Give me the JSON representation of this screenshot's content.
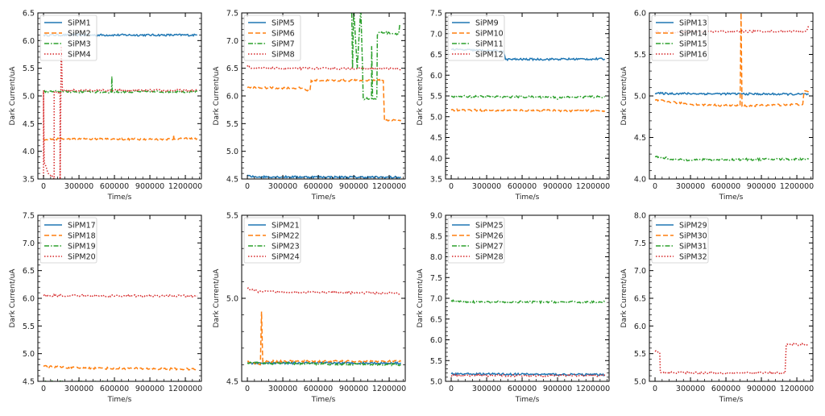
{
  "chart_data": [
    {
      "type": "line",
      "xlabel": "Time/s",
      "ylabel": "Dark Current/uA",
      "xlim": [
        -48000,
        1336000
      ],
      "ylim": [
        3.5,
        6.5
      ],
      "xticks": [
        "0",
        "300000",
        "600000",
        "900000",
        "1200000"
      ],
      "yticks": [
        "3.5",
        "4.0",
        "4.5",
        "5.0",
        "5.5",
        "6.0",
        "6.5"
      ],
      "legend": "top-left",
      "series": [
        {
          "name": "SiPM1",
          "points": [
            [
              0,
              6.1
            ],
            [
              1300000,
              6.1
            ]
          ]
        },
        {
          "name": "SiPM2",
          "points": [
            [
              0,
              4.22
            ],
            [
              1100000,
              4.22
            ],
            [
              1100000,
              4.3
            ],
            [
              1105000,
              4.22
            ],
            [
              1300000,
              4.23
            ]
          ]
        },
        {
          "name": "SiPM3",
          "points": [
            [
              0,
              5.08
            ],
            [
              575000,
              5.07
            ],
            [
              578000,
              5.35
            ],
            [
              582000,
              5.07
            ],
            [
              1300000,
              5.08
            ]
          ]
        },
        {
          "name": "SiPM4",
          "points": [
            [
              0,
              3.55
            ],
            [
              0,
              5.1
            ],
            [
              5000,
              3.8
            ],
            [
              40000,
              3.6
            ],
            [
              90000,
              3.5
            ],
            [
              90000,
              5.07
            ],
            [
              140000,
              5.07
            ],
            [
              140000,
              3.5
            ],
            [
              150000,
              5.9
            ],
            [
              160000,
              5.1
            ],
            [
              1300000,
              5.1
            ]
          ]
        }
      ]
    },
    {
      "type": "line",
      "xlabel": "Time/s",
      "ylabel": "Dark Current/uA",
      "xlim": [
        -48000,
        1336000
      ],
      "ylim": [
        4.5,
        7.5
      ],
      "xticks": [
        "0",
        "300000",
        "600000",
        "900000",
        "1200000"
      ],
      "yticks": [
        "4.5",
        "5.0",
        "5.5",
        "6.0",
        "6.5",
        "7.0",
        "7.5"
      ],
      "legend": "top-left",
      "series": [
        {
          "name": "SiPM5",
          "points": [
            [
              0,
              4.57
            ],
            [
              30000,
              4.54
            ],
            [
              1300000,
              4.53
            ]
          ]
        },
        {
          "name": "SiPM6",
          "points": [
            [
              0,
              6.15
            ],
            [
              480000,
              6.14
            ],
            [
              500000,
              6.1
            ],
            [
              530000,
              6.1
            ],
            [
              540000,
              6.28
            ],
            [
              1150000,
              6.28
            ],
            [
              1160000,
              5.56
            ],
            [
              1300000,
              5.56
            ]
          ]
        },
        {
          "name": "SiPM7",
          "points": [
            [
              880000,
              8.0
            ],
            [
              890000,
              6.5
            ],
            [
              900000,
              7.6
            ],
            [
              930000,
              6.5
            ],
            [
              960000,
              7.6
            ],
            [
              975000,
              6.5
            ],
            [
              980000,
              5.95
            ],
            [
              1050000,
              5.95
            ],
            [
              1052000,
              6.9
            ],
            [
              1060000,
              5.95
            ],
            [
              1095000,
              5.95
            ],
            [
              1100000,
              7.1
            ],
            [
              1120000,
              7.15
            ],
            [
              1280000,
              7.12
            ],
            [
              1290000,
              7.3
            ]
          ]
        },
        {
          "name": "SiPM8",
          "points": [
            [
              0,
              6.55
            ],
            [
              30000,
              6.5
            ],
            [
              1300000,
              6.49
            ]
          ]
        }
      ]
    },
    {
      "type": "line",
      "xlabel": "Time/s",
      "ylabel": "Dark Current/uA",
      "xlim": [
        -48000,
        1336000
      ],
      "ylim": [
        3.5,
        7.5
      ],
      "xticks": [
        "0",
        "300000",
        "600000",
        "900000",
        "1200000"
      ],
      "yticks": [
        "3.5",
        "4.0",
        "4.5",
        "5.0",
        "5.5",
        "6.0",
        "6.5",
        "7.0",
        "7.5"
      ],
      "legend": "top-left",
      "series": [
        {
          "name": "SiPM9",
          "points": [
            [
              0,
              6.62
            ],
            [
              440000,
              6.58
            ],
            [
              460000,
              6.38
            ],
            [
              1300000,
              6.39
            ]
          ]
        },
        {
          "name": "SiPM10",
          "points": [
            [
              0,
              5.16
            ],
            [
              1300000,
              5.14
            ]
          ]
        },
        {
          "name": "SiPM11",
          "points": [
            [
              0,
              5.49
            ],
            [
              880000,
              5.47
            ],
            [
              900000,
              5.42
            ],
            [
              920000,
              5.47
            ],
            [
              1300000,
              5.48
            ]
          ]
        },
        {
          "name": "SiPM12",
          "points": []
        }
      ]
    },
    {
      "type": "line",
      "xlabel": "Time/s",
      "ylabel": "Dark Current/uA",
      "xlim": [
        -48000,
        1336000
      ],
      "ylim": [
        4.0,
        6.0
      ],
      "xticks": [
        "0",
        "300000",
        "600000",
        "900000",
        "1200000"
      ],
      "yticks": [
        "4.0",
        "4.5",
        "5.0",
        "5.5",
        "6.0"
      ],
      "legend": "top-left",
      "series": [
        {
          "name": "SiPM13",
          "points": [
            [
              0,
              5.03
            ],
            [
              1300000,
              5.02
            ]
          ]
        },
        {
          "name": "SiPM14",
          "points": [
            [
              0,
              4.95
            ],
            [
              300000,
              4.9
            ],
            [
              720000,
              4.88
            ],
            [
              728000,
              6.0
            ],
            [
              736000,
              4.88
            ],
            [
              1250000,
              4.9
            ],
            [
              1260000,
              5.05
            ],
            [
              1300000,
              5.05
            ]
          ]
        },
        {
          "name": "SiPM15",
          "points": [
            [
              0,
              4.27
            ],
            [
              200000,
              4.23
            ],
            [
              1300000,
              4.24
            ]
          ]
        },
        {
          "name": "SiPM16",
          "points": [
            [
              0,
              5.77
            ],
            [
              1280000,
              5.78
            ],
            [
              1300000,
              5.85
            ]
          ]
        }
      ]
    },
    {
      "type": "line",
      "xlabel": "Time/s",
      "ylabel": "Dark Current/uA",
      "xlim": [
        -48000,
        1336000
      ],
      "ylim": [
        4.5,
        7.5
      ],
      "xticks": [
        "0",
        "300000",
        "600000",
        "900000",
        "1200000"
      ],
      "yticks": [
        "4.5",
        "5.0",
        "5.5",
        "6.0",
        "6.5",
        "7.0",
        "7.5"
      ],
      "legend": "top-left",
      "series": [
        {
          "name": "SiPM17",
          "points": []
        },
        {
          "name": "SiPM18",
          "points": [
            [
              0,
              4.77
            ],
            [
              300000,
              4.74
            ],
            [
              1300000,
              4.72
            ]
          ]
        },
        {
          "name": "SiPM19",
          "points": [
            [
              0,
              4.49
            ],
            [
              1300000,
              4.48
            ]
          ]
        },
        {
          "name": "SiPM20",
          "points": [
            [
              0,
              6.05
            ],
            [
              1300000,
              6.04
            ]
          ]
        }
      ]
    },
    {
      "type": "line",
      "xlabel": "Time/s",
      "ylabel": "Dark Current/uA",
      "xlim": [
        -48000,
        1336000
      ],
      "ylim": [
        4.5,
        5.5
      ],
      "xticks": [
        "0",
        "300000",
        "600000",
        "900000",
        "1200000"
      ],
      "yticks": [
        "4.5",
        "5.0",
        "5.5"
      ],
      "legend": "top-left",
      "series": [
        {
          "name": "SiPM21",
          "points": [
            [
              0,
              4.61
            ],
            [
              1300000,
              4.61
            ]
          ]
        },
        {
          "name": "SiPM22",
          "points": [
            [
              0,
              4.62
            ],
            [
              110000,
              4.6
            ],
            [
              120000,
              4.92
            ],
            [
              130000,
              4.62
            ],
            [
              1300000,
              4.62
            ]
          ]
        },
        {
          "name": "SiPM23",
          "points": [
            [
              0,
              4.61
            ],
            [
              1300000,
              4.6
            ]
          ]
        },
        {
          "name": "SiPM24",
          "points": [
            [
              0,
              5.06
            ],
            [
              100000,
              5.04
            ],
            [
              1300000,
              5.03
            ]
          ]
        }
      ]
    },
    {
      "type": "line",
      "xlabel": "Time/s",
      "ylabel": "Dark Current/uA",
      "xlim": [
        -48000,
        1336000
      ],
      "ylim": [
        5.0,
        9.0
      ],
      "xticks": [
        "0",
        "300000",
        "600000",
        "900000",
        "1200000"
      ],
      "yticks": [
        "5.0",
        "5.5",
        "6.0",
        "6.5",
        "7.0",
        "7.5",
        "8.0",
        "8.5",
        "9.0"
      ],
      "legend": "top-left",
      "series": [
        {
          "name": "SiPM25",
          "points": [
            [
              0,
              5.18
            ],
            [
              1300000,
              5.16
            ]
          ]
        },
        {
          "name": "SiPM26",
          "points": []
        },
        {
          "name": "SiPM27",
          "points": [
            [
              0,
              6.95
            ],
            [
              100000,
              6.91
            ],
            [
              1300000,
              6.91
            ]
          ]
        },
        {
          "name": "SiPM28",
          "points": [
            [
              0,
              5.14
            ],
            [
              1300000,
              5.14
            ]
          ]
        }
      ]
    },
    {
      "type": "line",
      "xlabel": "Time/s",
      "ylabel": "Dark Current/uA",
      "xlim": [
        -48000,
        1336000
      ],
      "ylim": [
        5.0,
        8.0
      ],
      "xticks": [
        "0",
        "300000",
        "600000",
        "900000",
        "1200000"
      ],
      "yticks": [
        "5.0",
        "5.5",
        "6.0",
        "6.5",
        "7.0",
        "7.5",
        "8.0"
      ],
      "legend": "top-left",
      "series": [
        {
          "name": "SiPM29",
          "points": []
        },
        {
          "name": "SiPM30",
          "points": []
        },
        {
          "name": "SiPM31",
          "points": []
        },
        {
          "name": "SiPM32",
          "points": [
            [
              0,
              5.54
            ],
            [
              40000,
              5.52
            ],
            [
              45000,
              5.16
            ],
            [
              1100000,
              5.15
            ],
            [
              1110000,
              5.66
            ],
            [
              1300000,
              5.67
            ]
          ]
        }
      ]
    }
  ],
  "colors": [
    "#1f77b4",
    "#ff7f0e",
    "#2ca02c",
    "#d62728"
  ]
}
